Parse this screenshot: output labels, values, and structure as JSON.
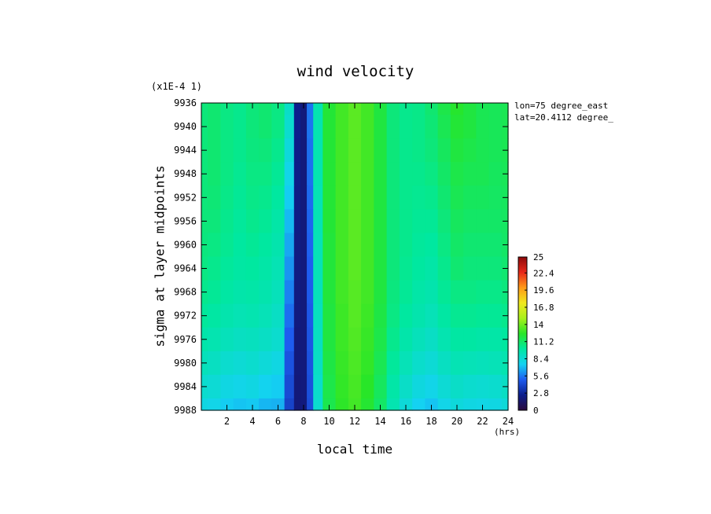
{
  "chart_data": {
    "type": "heatmap",
    "title": "wind velocity",
    "scale_note": "(x1E-4 1)",
    "xlabel": "local time",
    "xunit": "(hrs)",
    "ylabel": "sigma at layer midpoints",
    "annotations": [
      "lon=75 degree_east",
      "lat=20.4112 degree_"
    ],
    "xlim": [
      0,
      24
    ],
    "ylim": [
      9936,
      9988
    ],
    "y_inverted": true,
    "x_ticks": [
      2,
      4,
      6,
      8,
      10,
      12,
      14,
      16,
      18,
      20,
      22,
      24
    ],
    "y_ticks": [
      9936,
      9940,
      9944,
      9948,
      9952,
      9956,
      9960,
      9964,
      9968,
      9972,
      9976,
      9980,
      9984,
      9988
    ],
    "colorbar": {
      "range": [
        0,
        25
      ],
      "tick_labels": [
        "0",
        "2.8",
        "5.6",
        "8.4",
        "11.2",
        "14",
        "16.8",
        "19.6",
        "22.4",
        "25"
      ]
    },
    "x": [
      0,
      1,
      2,
      3,
      4,
      5,
      6,
      7,
      7.5,
      8,
      8.5,
      9,
      10,
      11,
      12,
      13,
      14,
      15,
      16,
      17,
      18,
      19,
      20,
      21,
      22,
      23,
      24
    ],
    "y": [
      9936,
      9940,
      9944,
      9948,
      9952,
      9956,
      9960,
      9964,
      9968,
      9972,
      9976,
      9980,
      9984,
      9988
    ],
    "values": [
      [
        10.8,
        11.0,
        10.6,
        10.4,
        10.8,
        11.0,
        10.6,
        8.8,
        2.5,
        2.0,
        5.5,
        9.5,
        12.2,
        13.0,
        13.5,
        13.0,
        12.0,
        10.8,
        10.4,
        10.5,
        11.0,
        11.8,
        12.4,
        12.0,
        11.6,
        11.5,
        11.6
      ],
      [
        10.8,
        11.0,
        10.6,
        10.4,
        10.8,
        11.0,
        10.6,
        8.6,
        2.5,
        2.0,
        5.5,
        9.5,
        12.2,
        13.0,
        13.5,
        13.0,
        12.0,
        10.8,
        10.4,
        10.5,
        10.9,
        11.6,
        12.2,
        12.0,
        11.6,
        11.5,
        11.6
      ],
      [
        10.8,
        11.0,
        10.6,
        10.4,
        10.7,
        10.8,
        10.4,
        8.2,
        2.4,
        2.0,
        5.4,
        9.5,
        12.2,
        13.0,
        13.5,
        13.0,
        12.0,
        10.8,
        10.4,
        10.5,
        10.8,
        11.4,
        12.0,
        11.8,
        11.6,
        11.5,
        11.6
      ],
      [
        10.8,
        11.0,
        10.6,
        10.3,
        10.6,
        10.6,
        10.2,
        7.8,
        2.4,
        2.0,
        5.4,
        9.5,
        12.2,
        13.0,
        13.5,
        13.0,
        12.0,
        10.8,
        10.4,
        10.4,
        10.6,
        11.2,
        11.8,
        11.6,
        11.6,
        11.4,
        11.5
      ],
      [
        10.8,
        10.9,
        10.5,
        10.2,
        10.5,
        10.4,
        10.0,
        7.4,
        2.3,
        2.0,
        5.3,
        9.4,
        12.2,
        13.0,
        13.5,
        13.0,
        12.0,
        10.8,
        10.4,
        10.3,
        10.4,
        11.0,
        11.6,
        11.4,
        11.4,
        11.3,
        11.4
      ],
      [
        10.8,
        10.8,
        10.4,
        10.1,
        10.4,
        10.2,
        9.8,
        7.0,
        2.3,
        2.0,
        5.2,
        9.4,
        12.2,
        13.0,
        13.5,
        13.0,
        12.0,
        10.8,
        10.4,
        10.2,
        10.2,
        10.8,
        11.4,
        11.2,
        11.2,
        11.2,
        11.3
      ],
      [
        10.7,
        10.6,
        10.3,
        10.0,
        10.2,
        10.0,
        9.6,
        6.6,
        2.2,
        2.0,
        5.1,
        9.3,
        12.1,
        13.0,
        13.5,
        13.0,
        12.0,
        10.8,
        10.4,
        10.1,
        10.0,
        10.6,
        11.2,
        11.0,
        11.0,
        11.0,
        11.2
      ],
      [
        10.6,
        10.4,
        10.1,
        9.9,
        10.0,
        9.8,
        9.4,
        6.2,
        2.2,
        2.0,
        5.0,
        9.3,
        12.1,
        13.0,
        13.5,
        13.0,
        12.0,
        10.8,
        10.3,
        10.0,
        9.8,
        10.4,
        11.0,
        10.8,
        10.8,
        10.8,
        11.0
      ],
      [
        10.4,
        10.2,
        9.9,
        9.7,
        9.8,
        9.6,
        9.2,
        5.8,
        2.1,
        2.0,
        4.9,
        9.2,
        12.1,
        13.0,
        13.4,
        13.0,
        12.0,
        10.7,
        10.2,
        9.8,
        9.6,
        10.2,
        10.6,
        10.6,
        10.5,
        10.5,
        10.7
      ],
      [
        10.1,
        9.9,
        9.6,
        9.4,
        9.5,
        9.3,
        8.9,
        5.4,
        2.1,
        2.0,
        4.8,
        9.1,
        12.0,
        12.9,
        13.4,
        12.9,
        11.9,
        10.6,
        10.0,
        9.6,
        9.3,
        9.9,
        10.3,
        10.3,
        10.2,
        10.2,
        10.4
      ],
      [
        9.7,
        9.5,
        9.2,
        9.0,
        9.1,
        8.9,
        8.6,
        5.0,
        2.0,
        2.0,
        4.7,
        9.0,
        12.0,
        12.9,
        13.3,
        12.8,
        11.8,
        10.4,
        9.7,
        9.2,
        8.9,
        9.5,
        9.9,
        9.9,
        9.8,
        9.8,
        10.0
      ],
      [
        9.2,
        9.0,
        8.6,
        8.4,
        8.6,
        8.3,
        8.0,
        4.6,
        2.0,
        2.0,
        4.6,
        8.9,
        11.9,
        12.8,
        13.2,
        12.7,
        11.6,
        10.1,
        9.3,
        8.7,
        8.4,
        9.0,
        9.4,
        9.3,
        9.2,
        9.3,
        9.5
      ],
      [
        8.6,
        8.4,
        8.0,
        7.8,
        8.0,
        7.6,
        7.4,
        4.3,
        1.9,
        2.0,
        4.5,
        8.7,
        11.8,
        12.7,
        13.1,
        12.5,
        11.4,
        9.8,
        8.8,
        8.1,
        7.8,
        8.4,
        8.8,
        8.6,
        8.5,
        8.6,
        8.9
      ],
      [
        8.0,
        7.8,
        7.4,
        7.2,
        7.3,
        6.9,
        6.8,
        4.0,
        1.9,
        2.0,
        4.4,
        8.6,
        11.7,
        12.6,
        13.0,
        12.3,
        11.2,
        9.5,
        8.3,
        7.5,
        7.2,
        7.8,
        8.2,
        8.0,
        7.9,
        8.0,
        8.3
      ]
    ]
  },
  "colors": {
    "colormap": [
      "#2a0a3e",
      "#0c1e8c",
      "#1e5cf0",
      "#14d2f2",
      "#00e8a0",
      "#28e628",
      "#a8f01c",
      "#f0e81e",
      "#ff9a18",
      "#e8281a",
      "#8c0a0a"
    ]
  }
}
